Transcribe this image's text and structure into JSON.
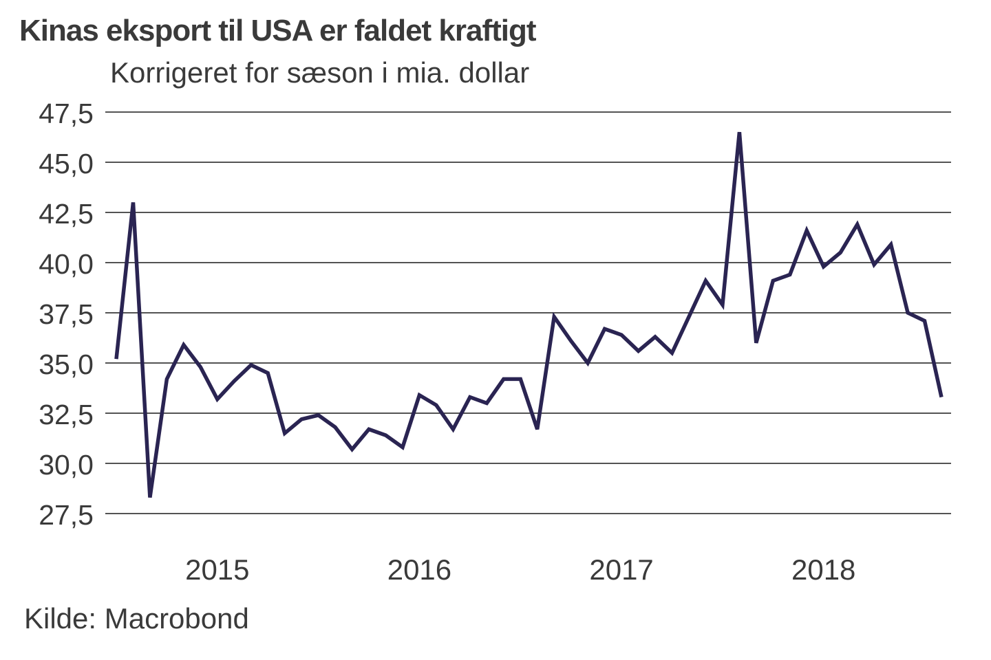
{
  "header": {
    "title": "Kinas eksport til USA er faldet kraftigt",
    "subtitle": "Korrigeret for sæson i mia. dollar"
  },
  "footer": {
    "source": "Kilde: Macrobond"
  },
  "colors": {
    "line": "#2a2452",
    "grid": "#1a1a1a",
    "text": "#3a3a3a",
    "background": "#ffffff"
  },
  "chart_data": {
    "type": "line",
    "title": "Kinas eksport til USA er faldet kraftigt",
    "subtitle": "Korrigeret for sæson i mia. dollar",
    "xlabel": "",
    "ylabel": "",
    "unit": "mia. dollar",
    "frequency": "monthly",
    "grid": "horizontal-only",
    "legend": "none",
    "ylim": [
      27.5,
      47.5
    ],
    "y_ticks": [
      {
        "v": 47.5,
        "label": "47,5"
      },
      {
        "v": 45.0,
        "label": "45,0"
      },
      {
        "v": 42.5,
        "label": "42,5"
      },
      {
        "v": 40.0,
        "label": "40,0"
      },
      {
        "v": 37.5,
        "label": "37,5"
      },
      {
        "v": 35.0,
        "label": "35,0"
      },
      {
        "v": 32.5,
        "label": "32,5"
      },
      {
        "v": 30.0,
        "label": "30,0"
      },
      {
        "v": 27.5,
        "label": "27,5"
      }
    ],
    "x_year_labels": [
      "2015",
      "2016",
      "2017",
      "2018"
    ],
    "months": [
      "2015-01",
      "2015-02",
      "2015-03",
      "2015-04",
      "2015-05",
      "2015-06",
      "2015-07",
      "2015-08",
      "2015-09",
      "2015-10",
      "2015-11",
      "2015-12",
      "2016-01",
      "2016-02",
      "2016-03",
      "2016-04",
      "2016-05",
      "2016-06",
      "2016-07",
      "2016-08",
      "2016-09",
      "2016-10",
      "2016-11",
      "2016-12",
      "2017-01",
      "2017-02",
      "2017-03",
      "2017-04",
      "2017-05",
      "2017-06",
      "2017-07",
      "2017-08",
      "2017-09",
      "2017-10",
      "2017-11",
      "2017-12",
      "2018-01",
      "2018-02",
      "2018-03",
      "2018-04",
      "2018-05",
      "2018-06",
      "2018-07",
      "2018-08",
      "2018-09",
      "2018-10",
      "2018-11",
      "2018-12",
      "2019-01",
      "2019-02"
    ],
    "values": [
      35.2,
      43.0,
      28.3,
      34.2,
      35.9,
      34.8,
      33.2,
      34.1,
      34.9,
      34.5,
      31.5,
      32.2,
      32.4,
      31.8,
      30.7,
      31.7,
      31.4,
      30.8,
      33.4,
      32.9,
      31.7,
      33.3,
      33.0,
      34.2,
      34.2,
      31.7,
      37.3,
      36.1,
      35.0,
      36.7,
      36.4,
      35.6,
      36.3,
      35.5,
      37.3,
      39.1,
      37.9,
      46.5,
      36.0,
      39.1,
      39.4,
      41.6,
      39.8,
      40.5,
      41.9,
      39.9,
      40.9,
      37.5,
      37.1,
      33.3
    ]
  }
}
